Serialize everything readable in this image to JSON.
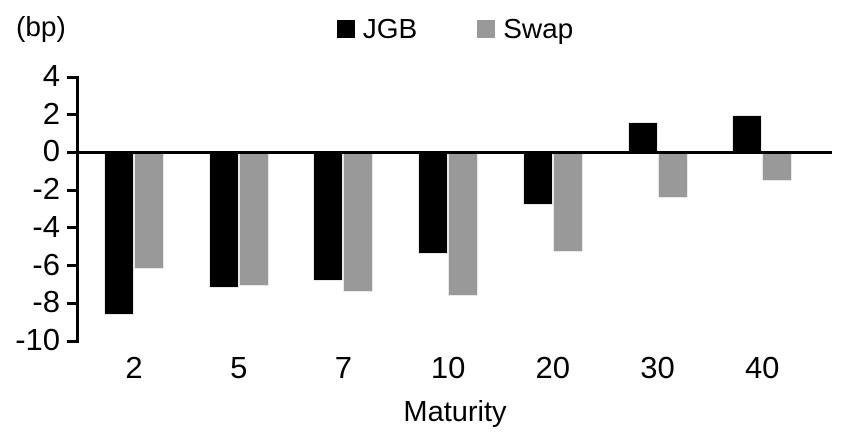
{
  "chart_data": {
    "type": "bar",
    "title": "",
    "categories": [
      "2",
      "5",
      "7",
      "10",
      "20",
      "30",
      "40"
    ],
    "series": [
      {
        "name": "JGB",
        "color": "#000000",
        "values": [
          -8.6,
          -7.2,
          -6.8,
          -5.4,
          -2.8,
          1.6,
          2.0
        ]
      },
      {
        "name": "Swap",
        "color": "#999999",
        "values": [
          -6.2,
          -7.1,
          -7.4,
          -7.6,
          -5.3,
          -2.4,
          -1.5
        ]
      }
    ],
    "xlabel": "Maturity",
    "ylabel": "(bp)",
    "ylim": [
      -10,
      4
    ],
    "yticks": [
      4,
      2,
      0,
      -2,
      -4,
      -6,
      -8,
      -10
    ],
    "grid": false,
    "legend_position": "top-center",
    "axis_color": "#000000",
    "background_color": "#ffffff"
  }
}
